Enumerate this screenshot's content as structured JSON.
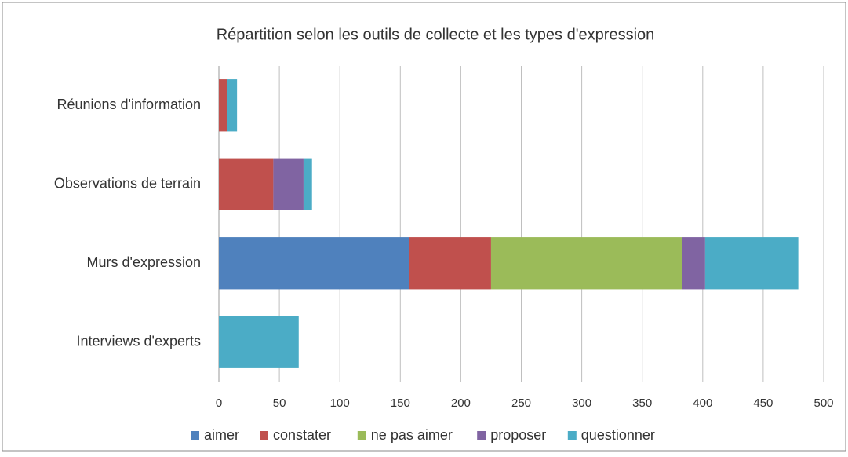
{
  "chart_data": {
    "type": "bar",
    "orientation": "horizontal",
    "stacked": true,
    "title": "Répartition selon les outils de collecte et les types d'expression",
    "categories": [
      "Réunions d'information",
      "Observations de terrain",
      "Murs d'expression",
      "Interviews d'experts"
    ],
    "series": [
      {
        "name": "aimer",
        "color": "#4f81bd",
        "values": [
          0,
          0,
          157,
          0
        ]
      },
      {
        "name": "constater",
        "color": "#c0504d",
        "values": [
          7,
          45,
          68,
          0
        ]
      },
      {
        "name": "ne pas aimer",
        "color": "#9bbb59",
        "values": [
          0,
          0,
          158,
          0
        ]
      },
      {
        "name": "proposer",
        "color": "#8064a2",
        "values": [
          0,
          25,
          19,
          0
        ]
      },
      {
        "name": "questionner",
        "color": "#4bacc6",
        "values": [
          8,
          7,
          77,
          66
        ]
      }
    ],
    "xlim": [
      0,
      500
    ],
    "xticks": [
      0,
      50,
      100,
      150,
      200,
      250,
      300,
      350,
      400,
      450,
      500
    ],
    "grid": true,
    "legend": "bottom"
  }
}
